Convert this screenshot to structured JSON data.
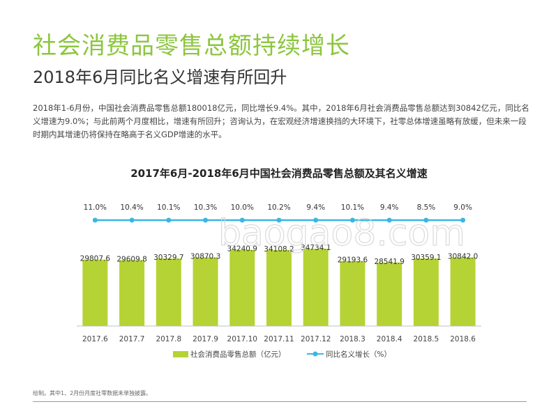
{
  "header": {
    "title": "社会消费品零售总额持续增长",
    "subtitle": "2018年6月同比名义增速有所回升"
  },
  "body": {
    "text": "2018年1-6月份，中国社会消费品零售总额180018亿元，同比增长9.4%。其中，2018年6月社会消费品零售总额达到30842亿元，同比名义增速为9.0%；与此前两个月度相比，增速有所回升；咨询认为，在宏观经济增速换挡的大环境下，社零总体增速虽略有放缓，但未来一段时期内其增速仍将保持在略高于名义GDP增速的水平。"
  },
  "footnote": "绘制。其中1、2月份月度社零数据未单独披露。",
  "watermark": "baogao8.com",
  "colors": {
    "title": "#8cc63e",
    "bar": "#b5d334",
    "line": "#39b6e6"
  },
  "chart_data": {
    "type": "bar",
    "title": "2017年6月-2018年6月中国社会消费品零售总额及其名义增速",
    "categories": [
      "2017.6",
      "2017.7",
      "2017.8",
      "2017.9",
      "2017.10",
      "2017.11",
      "2017.12",
      "2018.3",
      "2018.4",
      "2018.5",
      "2018.6"
    ],
    "series": [
      {
        "name": "社会消费品零售总额（亿元）",
        "type": "bar",
        "values": [
          29807.6,
          29609.8,
          30329.7,
          30870.3,
          34240.9,
          34108.2,
          34734.1,
          29193.6,
          28541.9,
          30359.1,
          30842.0
        ],
        "labels": [
          "29807.6",
          "29609.8",
          "30329.7",
          "30870.3",
          "34240.9",
          "34108.2",
          "34734.1",
          "29193.6",
          "28541.9",
          "30359.1",
          "30842.0"
        ]
      },
      {
        "name": "同比名义增长（%）",
        "type": "line",
        "values": [
          11.0,
          10.4,
          10.1,
          10.3,
          10.0,
          10.2,
          9.4,
          10.1,
          9.4,
          8.5,
          9.0
        ],
        "labels": [
          "11.0%",
          "10.4%",
          "10.1%",
          "10.3%",
          "10.0%",
          "10.2%",
          "9.4%",
          "10.1%",
          "9.4%",
          "8.5%",
          "9.0%"
        ]
      }
    ],
    "xlabel": "",
    "ylabel": "",
    "legend": "bottom",
    "grid": false
  }
}
